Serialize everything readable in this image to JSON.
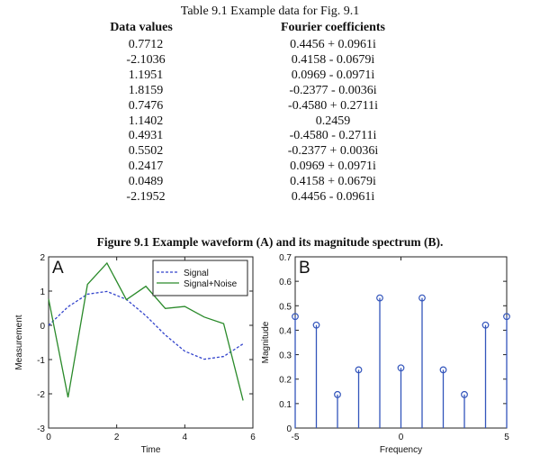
{
  "table": {
    "title": "Table 9.1  Example data for Fig. 9.1",
    "headers": [
      "Data values",
      "Fourier coefficients"
    ],
    "data_values": [
      "0.7712",
      "-2.1036",
      "1.1951",
      "1.8159",
      "0.7476",
      "1.1402",
      "0.4931",
      "0.5502",
      "0.2417",
      "0.0489",
      "-2.1952"
    ],
    "fourier_coefficients": [
      "0.4456 + 0.0961i",
      "0.4158 - 0.0679i",
      "0.0969 - 0.0971i",
      "-0.2377 - 0.0036i",
      "-0.4580 + 0.2711i",
      "0.2459",
      "-0.4580 - 0.2711i",
      "-0.2377 + 0.0036i",
      "0.0969 + 0.0971i",
      "0.4158 + 0.0679i",
      "0.4456 - 0.0961i"
    ]
  },
  "figure_caption": "Figure 9.1  Example waveform (A) and its magnitude spectrum (B).",
  "chart_data": [
    {
      "type": "line",
      "panel_label": "A",
      "xlabel": "Time",
      "ylabel": "Measurement",
      "xlim": [
        0,
        6
      ],
      "ylim": [
        -3,
        2
      ],
      "xticks": [
        "0",
        "2",
        "4",
        "6"
      ],
      "yticks": [
        "-3",
        "-2",
        "-1",
        "0",
        "1",
        "2"
      ],
      "legend": "top-right",
      "x": [
        0,
        0.571,
        1.142,
        1.714,
        2.285,
        2.856,
        3.427,
        3.999,
        4.57,
        5.141,
        5.712
      ],
      "series": [
        {
          "name": "Signal",
          "style": "dashed",
          "color": "#3344cc",
          "values": [
            0,
            0.541,
            0.91,
            0.99,
            0.756,
            0.282,
            -0.282,
            -0.756,
            -0.99,
            -0.91,
            -0.541
          ]
        },
        {
          "name": "Signal+Noise",
          "style": "solid",
          "color": "#2a8a2a",
          "values": [
            0.7712,
            -2.1036,
            1.1951,
            1.8159,
            0.7476,
            1.1402,
            0.4931,
            0.5502,
            0.2417,
            0.0489,
            -2.1952
          ]
        }
      ]
    },
    {
      "type": "stem",
      "panel_label": "B",
      "xlabel": "Frequency",
      "ylabel": "Magnitude",
      "xlim": [
        -5,
        5
      ],
      "ylim": [
        0,
        0.7
      ],
      "xticks": [
        "-5",
        "0",
        "5"
      ],
      "yticks": [
        "0",
        "0.1",
        "0.2",
        "0.3",
        "0.4",
        "0.5",
        "0.6",
        "0.7"
      ],
      "color": "#3355bb",
      "x": [
        -5,
        -4,
        -3,
        -2,
        -1,
        0,
        1,
        2,
        3,
        4,
        5
      ],
      "values": [
        0.456,
        0.421,
        0.137,
        0.238,
        0.532,
        0.246,
        0.532,
        0.238,
        0.137,
        0.421,
        0.456
      ]
    }
  ]
}
